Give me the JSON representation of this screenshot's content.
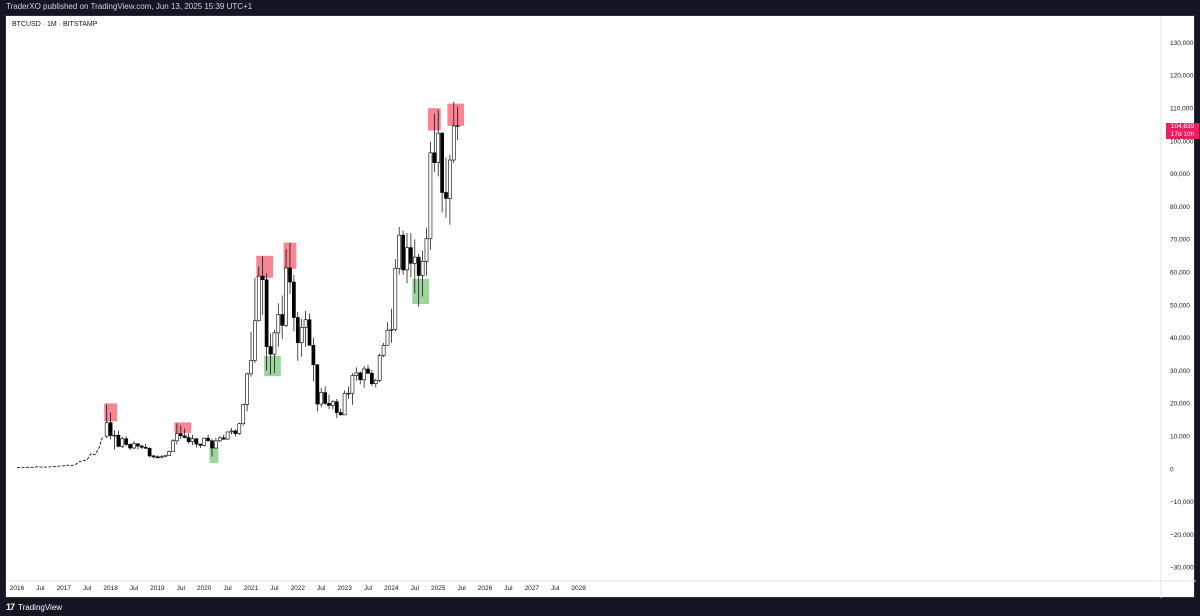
{
  "header": {
    "text": "TraderXO published on TradingView.com, Jun 13, 2025 15:39 UTC+1"
  },
  "symbol": {
    "label": "BTCUSD · 1M · BITSTAMP"
  },
  "last_price": {
    "value": "104,639",
    "countdown": "17d 10h"
  },
  "footer": {
    "logo_mark": "17",
    "logo_text": "TradingView"
  },
  "colors": {
    "up_body": "#ffffff",
    "down_body": "#000000",
    "wick": "#000000",
    "top_highlight": "#f7707f",
    "bottom_highlight": "#7cc87c",
    "price_tag": "#e91e63"
  },
  "chart_data": {
    "type": "candlestick",
    "title": "BTCUSD · 1M · BITSTAMP",
    "ylim": [
      -35000,
      135000
    ],
    "y_ticks": [
      -30000,
      -20000,
      -10000,
      0,
      10000,
      20000,
      30000,
      40000,
      50000,
      60000,
      70000,
      80000,
      90000,
      100000,
      110000,
      120000,
      130000
    ],
    "y_tick_labels": [
      "−30,000",
      "−20,000",
      "−10,000",
      "0",
      "10,000",
      "20,000",
      "30,000",
      "40,000",
      "50,000",
      "60,000",
      "70,000",
      "80,000",
      "90,000",
      "100,000",
      "110,000",
      "120,000",
      "130,000"
    ],
    "xlim": [
      "2016-01",
      "2028-01"
    ],
    "x_tick_labels": [
      "2016",
      "Jul",
      "2017",
      "Jul",
      "2018",
      "Jul",
      "2019",
      "Jul",
      "2020",
      "Jul",
      "2021",
      "Jul",
      "2022",
      "Jul",
      "2023",
      "Jul",
      "2024",
      "Jul",
      "2025",
      "Jul",
      "2026",
      "Jul",
      "2027",
      "Jul",
      "2028"
    ],
    "line_segment": {
      "start": "2016-01",
      "values": [
        400,
        420,
        410,
        450,
        530,
        670,
        620,
        570,
        610,
        700,
        740,
        960,
        970,
        1190,
        1080,
        1350,
        2300,
        2500,
        2870,
        4700,
        4340,
        6400,
        10000
      ]
    },
    "candles": [
      {
        "t": "2017-12",
        "o": 10000,
        "h": 19700,
        "l": 9500,
        "c": 14100
      },
      {
        "t": "2018-01",
        "o": 14100,
        "h": 17200,
        "l": 9000,
        "c": 10200
      },
      {
        "t": "2018-02",
        "o": 10200,
        "h": 11800,
        "l": 5900,
        "c": 10300
      },
      {
        "t": "2018-03",
        "o": 10300,
        "h": 11700,
        "l": 6600,
        "c": 6900
      },
      {
        "t": "2018-04",
        "o": 6900,
        "h": 9800,
        "l": 6400,
        "c": 9200
      },
      {
        "t": "2018-05",
        "o": 9200,
        "h": 10000,
        "l": 7000,
        "c": 7500
      },
      {
        "t": "2018-06",
        "o": 7500,
        "h": 7800,
        "l": 5800,
        "c": 6400
      },
      {
        "t": "2018-07",
        "o": 6400,
        "h": 8500,
        "l": 6100,
        "c": 7700
      },
      {
        "t": "2018-08",
        "o": 7700,
        "h": 7800,
        "l": 5900,
        "c": 7000
      },
      {
        "t": "2018-09",
        "o": 7000,
        "h": 7400,
        "l": 6100,
        "c": 6600
      },
      {
        "t": "2018-10",
        "o": 6600,
        "h": 7700,
        "l": 6200,
        "c": 6300
      },
      {
        "t": "2018-11",
        "o": 6300,
        "h": 6600,
        "l": 3600,
        "c": 4000
      },
      {
        "t": "2018-12",
        "o": 4000,
        "h": 4300,
        "l": 3200,
        "c": 3700
      },
      {
        "t": "2019-01",
        "o": 3700,
        "h": 4100,
        "l": 3400,
        "c": 3400
      },
      {
        "t": "2019-02",
        "o": 3400,
        "h": 4200,
        "l": 3400,
        "c": 3800
      },
      {
        "t": "2019-03",
        "o": 3800,
        "h": 4100,
        "l": 3700,
        "c": 4100
      },
      {
        "t": "2019-04",
        "o": 4100,
        "h": 5600,
        "l": 4100,
        "c": 5300
      },
      {
        "t": "2019-05",
        "o": 5300,
        "h": 9100,
        "l": 5300,
        "c": 8600
      },
      {
        "t": "2019-06",
        "o": 8600,
        "h": 13900,
        "l": 7500,
        "c": 10800
      },
      {
        "t": "2019-07",
        "o": 10800,
        "h": 13200,
        "l": 9100,
        "c": 10100
      },
      {
        "t": "2019-08",
        "o": 10100,
        "h": 12300,
        "l": 9400,
        "c": 9600
      },
      {
        "t": "2019-09",
        "o": 9600,
        "h": 10900,
        "l": 7700,
        "c": 8300
      },
      {
        "t": "2019-10",
        "o": 8300,
        "h": 10400,
        "l": 7300,
        "c": 9200
      },
      {
        "t": "2019-11",
        "o": 9200,
        "h": 9500,
        "l": 6500,
        "c": 7600
      },
      {
        "t": "2019-12",
        "o": 7600,
        "h": 7700,
        "l": 6400,
        "c": 7200
      },
      {
        "t": "2020-01",
        "o": 7200,
        "h": 9600,
        "l": 6900,
        "c": 9400
      },
      {
        "t": "2020-02",
        "o": 9400,
        "h": 10500,
        "l": 8400,
        "c": 8600
      },
      {
        "t": "2020-03",
        "o": 8600,
        "h": 9200,
        "l": 3800,
        "c": 6400
      },
      {
        "t": "2020-04",
        "o": 6400,
        "h": 9500,
        "l": 6200,
        "c": 8600
      },
      {
        "t": "2020-05",
        "o": 8600,
        "h": 10000,
        "l": 8100,
        "c": 9500
      },
      {
        "t": "2020-06",
        "o": 9500,
        "h": 10400,
        "l": 8900,
        "c": 9100
      },
      {
        "t": "2020-07",
        "o": 9100,
        "h": 11400,
        "l": 8900,
        "c": 11300
      },
      {
        "t": "2020-08",
        "o": 11300,
        "h": 12500,
        "l": 10500,
        "c": 11600
      },
      {
        "t": "2020-09",
        "o": 11600,
        "h": 12100,
        "l": 9900,
        "c": 10800
      },
      {
        "t": "2020-10",
        "o": 10800,
        "h": 14100,
        "l": 10400,
        "c": 13800
      },
      {
        "t": "2020-11",
        "o": 13800,
        "h": 19900,
        "l": 13200,
        "c": 19700
      },
      {
        "t": "2020-12",
        "o": 19700,
        "h": 29300,
        "l": 17600,
        "c": 29000
      },
      {
        "t": "2021-01",
        "o": 29000,
        "h": 41900,
        "l": 28100,
        "c": 33100
      },
      {
        "t": "2021-02",
        "o": 33100,
        "h": 58300,
        "l": 32300,
        "c": 45200
      },
      {
        "t": "2021-03",
        "o": 45200,
        "h": 61700,
        "l": 45000,
        "c": 58800
      },
      {
        "t": "2021-04",
        "o": 58800,
        "h": 64800,
        "l": 47000,
        "c": 57700
      },
      {
        "t": "2021-05",
        "o": 57700,
        "h": 59600,
        "l": 30000,
        "c": 37300
      },
      {
        "t": "2021-06",
        "o": 37300,
        "h": 41300,
        "l": 28800,
        "c": 35000
      },
      {
        "t": "2021-07",
        "o": 35000,
        "h": 42400,
        "l": 29300,
        "c": 41500
      },
      {
        "t": "2021-08",
        "o": 41500,
        "h": 50500,
        "l": 37300,
        "c": 47100
      },
      {
        "t": "2021-09",
        "o": 47100,
        "h": 52900,
        "l": 39600,
        "c": 43800
      },
      {
        "t": "2021-10",
        "o": 43800,
        "h": 67000,
        "l": 43300,
        "c": 61300
      },
      {
        "t": "2021-11",
        "o": 61300,
        "h": 69000,
        "l": 53300,
        "c": 57000
      },
      {
        "t": "2021-12",
        "o": 57000,
        "h": 59100,
        "l": 42000,
        "c": 46200
      },
      {
        "t": "2022-01",
        "o": 46200,
        "h": 47900,
        "l": 33000,
        "c": 38500
      },
      {
        "t": "2022-02",
        "o": 38500,
        "h": 45800,
        "l": 34300,
        "c": 43200
      },
      {
        "t": "2022-03",
        "o": 43200,
        "h": 48200,
        "l": 37200,
        "c": 45500
      },
      {
        "t": "2022-04",
        "o": 45500,
        "h": 47400,
        "l": 37700,
        "c": 37700
      },
      {
        "t": "2022-05",
        "o": 37700,
        "h": 40000,
        "l": 26700,
        "c": 31800
      },
      {
        "t": "2022-06",
        "o": 31800,
        "h": 31900,
        "l": 17600,
        "c": 19800
      },
      {
        "t": "2022-07",
        "o": 19800,
        "h": 24700,
        "l": 18800,
        "c": 23300
      },
      {
        "t": "2022-08",
        "o": 23300,
        "h": 25200,
        "l": 19600,
        "c": 20000
      },
      {
        "t": "2022-09",
        "o": 20000,
        "h": 22700,
        "l": 18200,
        "c": 19400
      },
      {
        "t": "2022-10",
        "o": 19400,
        "h": 21000,
        "l": 18200,
        "c": 20500
      },
      {
        "t": "2022-11",
        "o": 20500,
        "h": 21400,
        "l": 15500,
        "c": 17200
      },
      {
        "t": "2022-12",
        "o": 17200,
        "h": 18400,
        "l": 16300,
        "c": 16500
      },
      {
        "t": "2023-01",
        "o": 16500,
        "h": 23900,
        "l": 16500,
        "c": 23100
      },
      {
        "t": "2023-02",
        "o": 23100,
        "h": 25200,
        "l": 21400,
        "c": 23100
      },
      {
        "t": "2023-03",
        "o": 23100,
        "h": 29200,
        "l": 19600,
        "c": 28500
      },
      {
        "t": "2023-04",
        "o": 28500,
        "h": 31000,
        "l": 26900,
        "c": 29300
      },
      {
        "t": "2023-05",
        "o": 29300,
        "h": 29800,
        "l": 25800,
        "c": 27200
      },
      {
        "t": "2023-06",
        "o": 27200,
        "h": 31400,
        "l": 24800,
        "c": 30500
      },
      {
        "t": "2023-07",
        "o": 30500,
        "h": 31800,
        "l": 28900,
        "c": 29200
      },
      {
        "t": "2023-08",
        "o": 29200,
        "h": 30200,
        "l": 25300,
        "c": 26000
      },
      {
        "t": "2023-09",
        "o": 26000,
        "h": 27500,
        "l": 24900,
        "c": 27000
      },
      {
        "t": "2023-10",
        "o": 27000,
        "h": 35200,
        "l": 26500,
        "c": 34600
      },
      {
        "t": "2023-11",
        "o": 34600,
        "h": 38400,
        "l": 34100,
        "c": 37700
      },
      {
        "t": "2023-12",
        "o": 37700,
        "h": 44700,
        "l": 37600,
        "c": 42300
      },
      {
        "t": "2024-01",
        "o": 42300,
        "h": 48900,
        "l": 38500,
        "c": 42600
      },
      {
        "t": "2024-02",
        "o": 42600,
        "h": 64000,
        "l": 41900,
        "c": 61200
      },
      {
        "t": "2024-03",
        "o": 61200,
        "h": 73800,
        "l": 59300,
        "c": 71300
      },
      {
        "t": "2024-04",
        "o": 71300,
        "h": 72700,
        "l": 59200,
        "c": 60700
      },
      {
        "t": "2024-05",
        "o": 60700,
        "h": 71900,
        "l": 56600,
        "c": 67500
      },
      {
        "t": "2024-06",
        "o": 67500,
        "h": 71900,
        "l": 58500,
        "c": 62700
      },
      {
        "t": "2024-07",
        "o": 62700,
        "h": 70000,
        "l": 53500,
        "c": 64600
      },
      {
        "t": "2024-08",
        "o": 64600,
        "h": 65600,
        "l": 49500,
        "c": 59000
      },
      {
        "t": "2024-09",
        "o": 59000,
        "h": 66500,
        "l": 52600,
        "c": 63300
      },
      {
        "t": "2024-10",
        "o": 63300,
        "h": 73600,
        "l": 58900,
        "c": 70200
      },
      {
        "t": "2024-11",
        "o": 70200,
        "h": 99800,
        "l": 66800,
        "c": 96400
      },
      {
        "t": "2024-12",
        "o": 96400,
        "h": 108300,
        "l": 90500,
        "c": 93400
      },
      {
        "t": "2025-01",
        "o": 93400,
        "h": 109400,
        "l": 89200,
        "c": 102400
      },
      {
        "t": "2025-02",
        "o": 102400,
        "h": 102700,
        "l": 78200,
        "c": 84300
      },
      {
        "t": "2025-03",
        "o": 84300,
        "h": 95000,
        "l": 76600,
        "c": 82500
      },
      {
        "t": "2025-04",
        "o": 82500,
        "h": 95800,
        "l": 74500,
        "c": 94200
      },
      {
        "t": "2025-05",
        "o": 94200,
        "h": 111900,
        "l": 93300,
        "c": 104600
      },
      {
        "t": "2025-06",
        "o": 104600,
        "h": 110500,
        "l": 100300,
        "c": 104639
      }
    ],
    "highlights": [
      {
        "kind": "top",
        "from": "2017-12",
        "to": "2018-02",
        "y0": 14500,
        "y1": 20000
      },
      {
        "kind": "top",
        "from": "2019-06",
        "to": "2019-09",
        "y0": 11000,
        "y1": 14200
      },
      {
        "kind": "bottom",
        "from": "2020-03",
        "to": "2020-04",
        "y0": 1800,
        "y1": 6500
      },
      {
        "kind": "top",
        "from": "2021-03",
        "to": "2021-06",
        "y0": 58300,
        "y1": 65000
      },
      {
        "kind": "bottom",
        "from": "2021-05",
        "to": "2021-08",
        "y0": 28300,
        "y1": 34500
      },
      {
        "kind": "top",
        "from": "2021-10",
        "to": "2021-12",
        "y0": 61000,
        "y1": 69000
      },
      {
        "kind": "bottom",
        "from": "2024-07",
        "to": "2024-10",
        "y0": 50300,
        "y1": 58000
      },
      {
        "kind": "top",
        "from": "2024-11",
        "to": "2025-01",
        "y0": 103200,
        "y1": 110000
      },
      {
        "kind": "top",
        "from": "2025-04",
        "to": "2025-07",
        "y0": 104600,
        "y1": 111400
      }
    ]
  }
}
